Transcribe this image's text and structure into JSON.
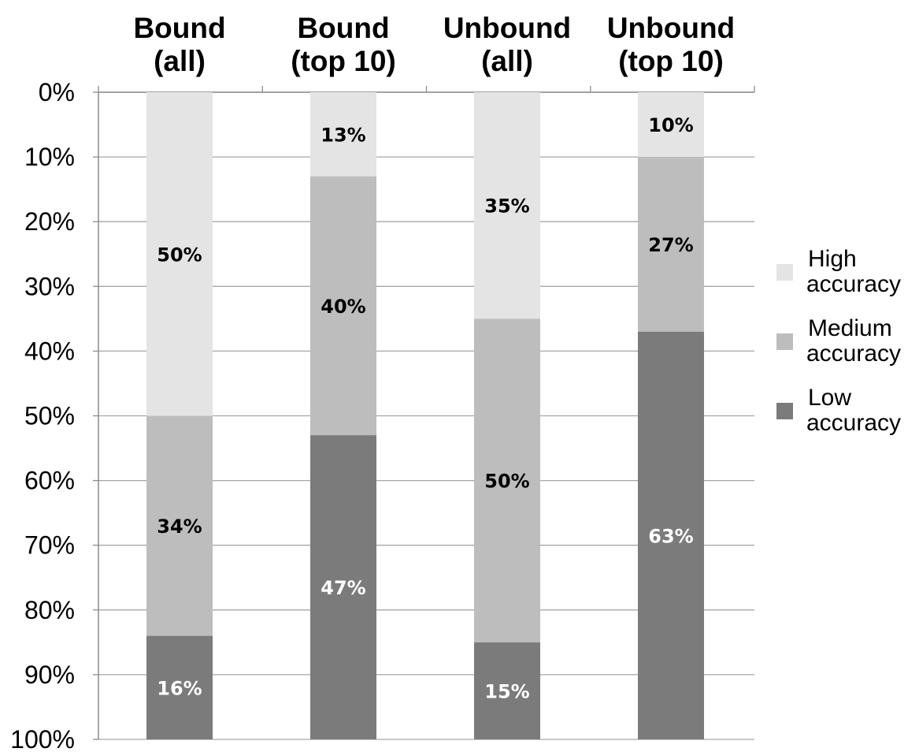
{
  "chart_data": {
    "type": "bar",
    "stacked": true,
    "orientation": "vertical",
    "y_axis": "inverted",
    "categories": [
      [
        "Bound",
        "(all)"
      ],
      [
        "Bound",
        "(top 10)"
      ],
      [
        "Unbound",
        "(all)"
      ],
      [
        "Unbound",
        "(top 10)"
      ]
    ],
    "series": [
      {
        "name": [
          "High",
          "accuracy"
        ],
        "color": "#e4e4e4",
        "label_color": "#000000",
        "values": [
          50,
          13,
          35,
          10
        ]
      },
      {
        "name": [
          "Medium",
          "accuracy"
        ],
        "color": "#bdbdbd",
        "label_color": "#000000",
        "values": [
          34,
          40,
          50,
          27
        ]
      },
      {
        "name": [
          "Low",
          "accuracy"
        ],
        "color": "#7b7b7b",
        "label_color": "#ffffff",
        "values": [
          16,
          47,
          15,
          63
        ]
      }
    ],
    "data_labels": [
      [
        "50%",
        "13%",
        "35%",
        "10%"
      ],
      [
        "34%",
        "40%",
        "50%",
        "27%"
      ],
      [
        "16%",
        "47%",
        "15%",
        "63%"
      ]
    ],
    "y_ticks": [
      "0%",
      "10%",
      "20%",
      "30%",
      "40%",
      "50%",
      "60%",
      "70%",
      "80%",
      "90%",
      "100%"
    ],
    "ylim": [
      0,
      100
    ],
    "grid": true,
    "legend_position": "right"
  }
}
